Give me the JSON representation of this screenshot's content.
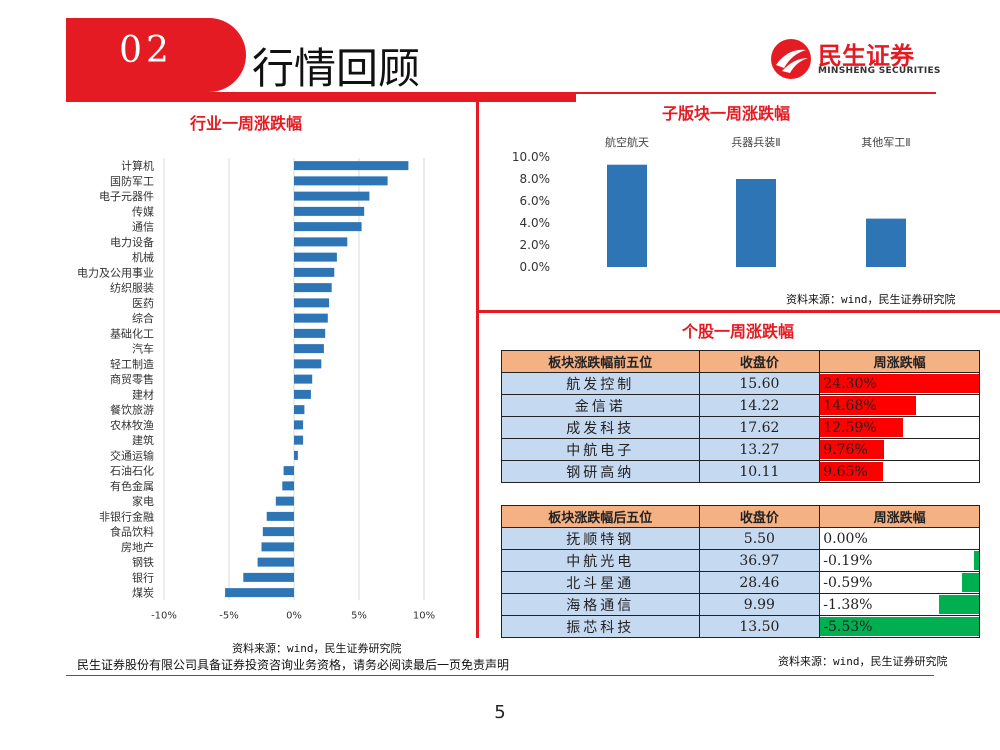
{
  "header": {
    "section_num": "02",
    "title": "行情回顾"
  },
  "logo": {
    "cn": "民生证券",
    "en": "MINSHENG SECURITIES",
    "mark_color": "#e41b23"
  },
  "colors": {
    "accent": "#e41b23",
    "bar_blue": "#2e75b6",
    "header_fill": "#f4b183",
    "cell_fill": "#c5d9f1",
    "up": "#ff0000",
    "down": "#00b050"
  },
  "chart_data": [
    {
      "type": "bar",
      "orientation": "horizontal",
      "title": "行业一周涨跌幅",
      "categories": [
        "计算机",
        "国防军工",
        "电子元器件",
        "传媒",
        "通信",
        "电力设备",
        "机械",
        "电力及公用事业",
        "纺织服装",
        "医药",
        "综合",
        "基础化工",
        "汽车",
        "轻工制造",
        "商贸零售",
        "建材",
        "餐饮旅游",
        "农林牧渔",
        "建筑",
        "交通运输",
        "石油石化",
        "有色金属",
        "家电",
        "非银行金融",
        "食品饮料",
        "房地产",
        "钢铁",
        "银行",
        "煤炭"
      ],
      "values": [
        8.8,
        7.2,
        5.8,
        5.4,
        5.2,
        4.1,
        3.3,
        3.1,
        2.9,
        2.7,
        2.6,
        2.4,
        2.3,
        2.1,
        1.4,
        1.3,
        0.8,
        0.7,
        0.7,
        0.3,
        -0.8,
        -0.9,
        -1.4,
        -2.1,
        -2.4,
        -2.5,
        -2.8,
        -3.9,
        -5.3
      ],
      "xlim": [
        -10,
        10
      ],
      "xticks": [
        "-10%",
        "-5%",
        "0%",
        "5%",
        "10%"
      ],
      "grid": true,
      "source": "资料来源：wind，民生证券研究院"
    },
    {
      "type": "bar",
      "title": "子版块一周涨跌幅",
      "categories": [
        "航空航天",
        "兵器兵装Ⅱ",
        "其他军工Ⅱ"
      ],
      "values": [
        9.3,
        8.0,
        4.4
      ],
      "ylim": [
        0,
        10
      ],
      "yticks": [
        "0.0%",
        "2.0%",
        "4.0%",
        "6.0%",
        "8.0%",
        "10.0%"
      ],
      "source": "资料来源：wind，民生证券研究院"
    }
  ],
  "stocks": {
    "title": "个股一周涨跌幅",
    "top": {
      "headers": [
        "板块涨跌幅前五位",
        "收盘价",
        "周涨跌幅"
      ],
      "rows": [
        {
          "name": "航发控制",
          "close": "15.60",
          "chg": "24.30%",
          "val": 24.3
        },
        {
          "name": "金信诺",
          "close": "14.22",
          "chg": "14.68%",
          "val": 14.68
        },
        {
          "name": "成发科技",
          "close": "17.62",
          "chg": "12.59%",
          "val": 12.59
        },
        {
          "name": "中航电子",
          "close": "13.27",
          "chg": "9.76%",
          "val": 9.76
        },
        {
          "name": "钢研高纳",
          "close": "10.11",
          "chg": "9.65%",
          "val": 9.65
        }
      ]
    },
    "bottom": {
      "headers": [
        "板块涨跌幅后五位",
        "收盘价",
        "周涨跌幅"
      ],
      "rows": [
        {
          "name": "抚顺特钢",
          "close": "5.50",
          "chg": "0.00%",
          "val": 0.0
        },
        {
          "name": "中航光电",
          "close": "36.97",
          "chg": "-0.19%",
          "val": -0.19
        },
        {
          "name": "北斗星通",
          "close": "28.46",
          "chg": "-0.59%",
          "val": -0.59
        },
        {
          "name": "海格通信",
          "close": "9.99",
          "chg": "-1.38%",
          "val": -1.38
        },
        {
          "name": "振芯科技",
          "close": "13.50",
          "chg": "-5.53%",
          "val": -5.53
        }
      ]
    },
    "source": "资料来源：wind，民生证券研究院"
  },
  "footer": {
    "disclaimer": "民生证券股份有限公司具备证券投资咨询业务资格，请务必阅读最后一页免责声明",
    "page": "5"
  }
}
